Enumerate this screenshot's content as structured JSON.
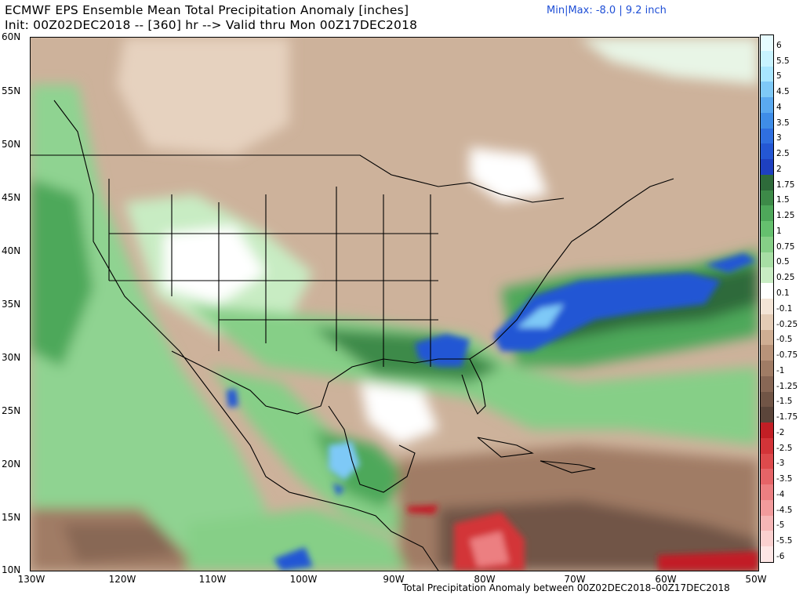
{
  "header": {
    "title_line1": "ECMWF EPS Ensemble Mean Total Precipitation Anomaly [inches]",
    "title_line2": "Init: 00Z02DEC2018 -- [360] hr --> Valid thru Mon 00Z17DEC2018",
    "minmax": "Min|Max: -8.0 | 9.2 inch"
  },
  "axes": {
    "lat_labels": [
      "60N",
      "55N",
      "50N",
      "45N",
      "40N",
      "35N",
      "30N",
      "25N",
      "20N",
      "15N",
      "10N"
    ],
    "lon_labels": [
      "130W",
      "120W",
      "110W",
      "100W",
      "90W",
      "80W",
      "70W",
      "60W",
      "50W"
    ]
  },
  "footer": "Total Precipitation Anomaly between 00Z02DEC2018–00Z17DEC2018",
  "colorbar": {
    "labels": [
      "6",
      "5.5",
      "5",
      "4.5",
      "4",
      "3.5",
      "3",
      "2.5",
      "2",
      "1.75",
      "1.5",
      "1.25",
      "1",
      "0.75",
      "0.5",
      "0.25",
      "0.1",
      "-0.1",
      "-0.25",
      "-0.5",
      "-0.75",
      "-1",
      "-1.25",
      "-1.5",
      "-1.75",
      "-2",
      "-2.5",
      "-3",
      "-3.5",
      "-4",
      "-4.5",
      "-5",
      "-5.5",
      "-6"
    ],
    "colors": [
      "#e6fbff",
      "#c8f3ff",
      "#a8e6ff",
      "#7ec9f7",
      "#5aa9f0",
      "#3f8de8",
      "#2f6fe0",
      "#2457d4",
      "#1e40c0",
      "#2e6b3a",
      "#3d8a48",
      "#4ea85a",
      "#65c06e",
      "#86cf87",
      "#a7dea4",
      "#c8ecc3",
      "#ffffff",
      "#f3e4d6",
      "#e3cbb5",
      "#cfae93",
      "#b89379",
      "#a07c65",
      "#886755",
      "#715546",
      "#5b453a",
      "#c21f25",
      "#d33438",
      "#dd4a4c",
      "#e56467",
      "#ec7f81",
      "#f29b9c",
      "#f6b6b6",
      "#fad0cf",
      "#fde6e5"
    ]
  }
}
